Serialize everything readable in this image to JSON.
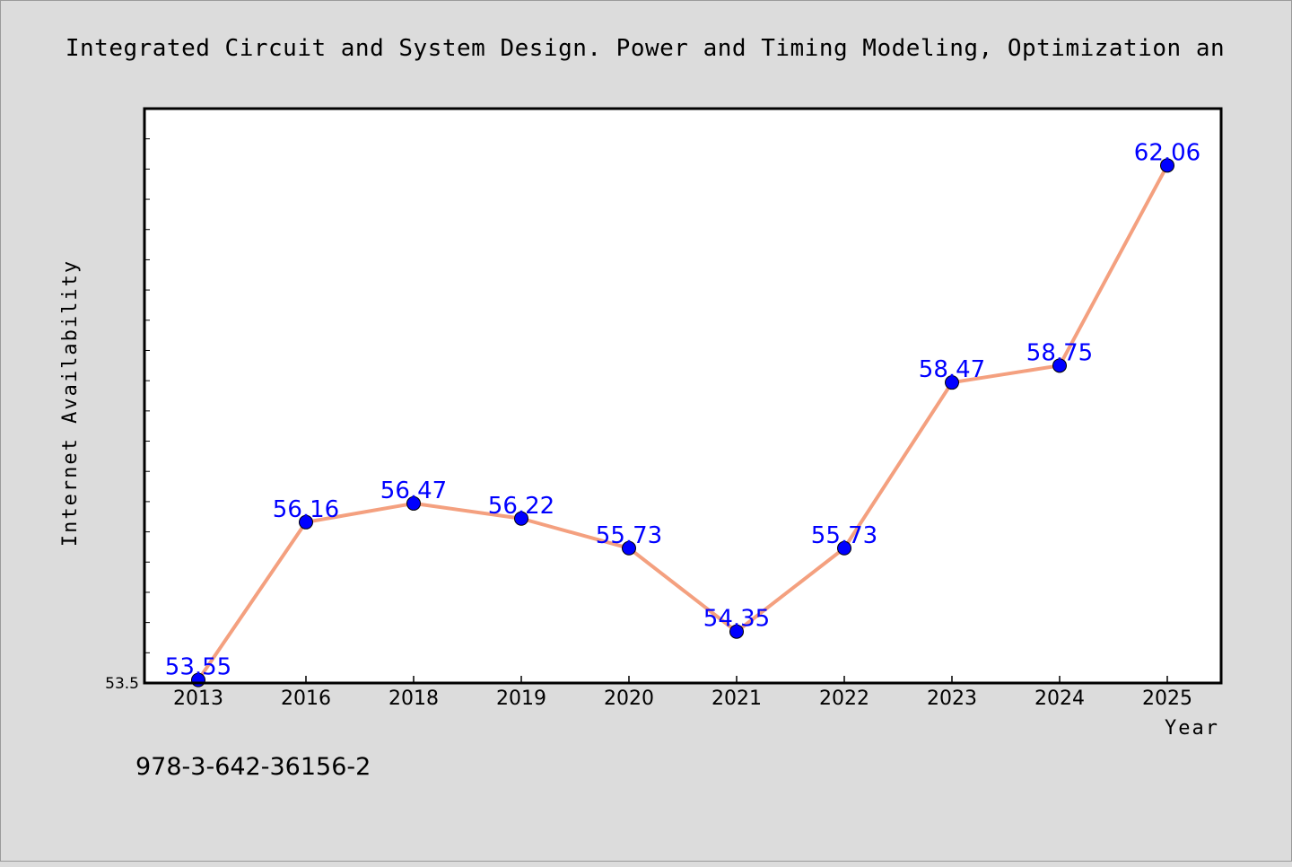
{
  "chart_data": {
    "type": "line",
    "title": "Integrated Circuit and System Design. Power and Timing Modeling, Optimization an",
    "xlabel": "Year",
    "ylabel": "Internet Availability",
    "categories": [
      "2013",
      "2016",
      "2018",
      "2019",
      "2020",
      "2021",
      "2022",
      "2023",
      "2024",
      "2025"
    ],
    "values": [
      53.55,
      56.16,
      56.47,
      56.22,
      55.73,
      54.35,
      55.73,
      58.47,
      58.75,
      62.06
    ],
    "data_labels": [
      "53.55",
      "56.16",
      "56.47",
      "56.22",
      "55.73",
      "54.35",
      "55.73",
      "58.47",
      "58.75",
      "62.06"
    ],
    "y_tick_labels": [
      "53.5"
    ],
    "ylim": [
      53.5,
      63.0
    ],
    "grid": false,
    "legend": "none",
    "colors": {
      "line": "#f4a07f",
      "marker": "#0000ff",
      "data_label": "#0000ff",
      "background": "#dcdcdc",
      "plot_background": "#ffffff"
    }
  },
  "footer_text": "978-3-642-36156-2"
}
